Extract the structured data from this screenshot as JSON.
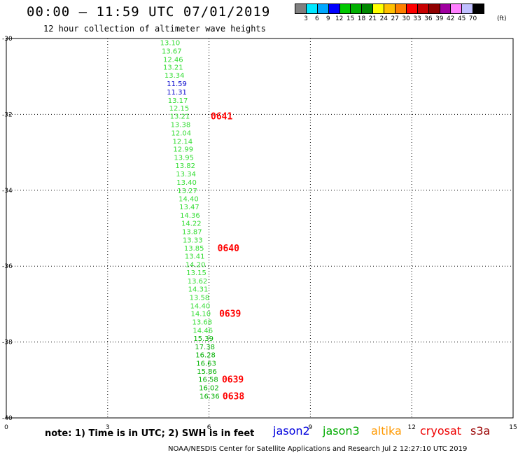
{
  "header": {
    "title": "00:00 — 11:59 UTC 07/01/2019",
    "subtitle": "12 hour collection of altimeter wave heights"
  },
  "color_scale": {
    "unit": "(ft)",
    "colors": [
      "#808080",
      "#00e8ff",
      "#00a8ff",
      "#0000ff",
      "#00c800",
      "#00b000",
      "#008800",
      "#ffff00",
      "#ffc000",
      "#ff8000",
      "#ff0000",
      "#c80000",
      "#900000",
      "#a000a0",
      "#ff80ff",
      "#c0c0ff",
      "#000000"
    ],
    "labels": [
      "3",
      "6",
      "9",
      "12",
      "15",
      "18",
      "21",
      "24",
      "27",
      "30",
      "33",
      "36",
      "39",
      "42",
      "45",
      "70"
    ]
  },
  "map": {
    "x_ticks": [
      "0",
      "3",
      "6",
      "9",
      "12",
      "15"
    ],
    "y_ticks": [
      "-30",
      "-32",
      "-34",
      "-36",
      "-38",
      "-40"
    ],
    "x_range": [
      0,
      15
    ],
    "y_range": [
      -30,
      -40
    ]
  },
  "wave_heights": [
    {
      "v": "13.10",
      "lon": 4.55,
      "lat": -30.1,
      "c": "#33dd33"
    },
    {
      "v": "13.67",
      "lon": 4.6,
      "lat": -30.32,
      "c": "#33dd33"
    },
    {
      "v": "12.46",
      "lon": 4.64,
      "lat": -30.54,
      "c": "#33dd33"
    },
    {
      "v": "13.21",
      "lon": 4.64,
      "lat": -30.75,
      "c": "#33dd33"
    },
    {
      "v": "13.34",
      "lon": 4.68,
      "lat": -30.96,
      "c": "#33dd33"
    },
    {
      "v": "11.59",
      "lon": 4.75,
      "lat": -31.18,
      "c": "#0000cc"
    },
    {
      "v": "11.31",
      "lon": 4.75,
      "lat": -31.4,
      "c": "#0000cc"
    },
    {
      "v": "13.17",
      "lon": 4.78,
      "lat": -31.62,
      "c": "#33dd33"
    },
    {
      "v": "12.15",
      "lon": 4.82,
      "lat": -31.83,
      "c": "#33dd33"
    },
    {
      "v": "13.21",
      "lon": 4.84,
      "lat": -32.04,
      "c": "#33dd33"
    },
    {
      "v": "13.38",
      "lon": 4.86,
      "lat": -32.26,
      "c": "#33dd33"
    },
    {
      "v": "12.04",
      "lon": 4.88,
      "lat": -32.48,
      "c": "#33dd33"
    },
    {
      "v": "12.14",
      "lon": 4.92,
      "lat": -32.7,
      "c": "#33dd33"
    },
    {
      "v": "12.99",
      "lon": 4.94,
      "lat": -32.91,
      "c": "#33dd33"
    },
    {
      "v": "13.95",
      "lon": 4.96,
      "lat": -33.13,
      "c": "#33dd33"
    },
    {
      "v": "13.82",
      "lon": 5.0,
      "lat": -33.34,
      "c": "#33dd33"
    },
    {
      "v": "13.34",
      "lon": 5.02,
      "lat": -33.56,
      "c": "#33dd33"
    },
    {
      "v": "13.40",
      "lon": 5.04,
      "lat": -33.78,
      "c": "#33dd33"
    },
    {
      "v": "13.27",
      "lon": 5.06,
      "lat": -34.0,
      "c": "#33dd33"
    },
    {
      "v": "14.40",
      "lon": 5.1,
      "lat": -34.22,
      "c": "#33dd33"
    },
    {
      "v": "13.47",
      "lon": 5.12,
      "lat": -34.43,
      "c": "#33dd33"
    },
    {
      "v": "14.36",
      "lon": 5.14,
      "lat": -34.65,
      "c": "#33dd33"
    },
    {
      "v": "14.22",
      "lon": 5.18,
      "lat": -34.86,
      "c": "#33dd33"
    },
    {
      "v": "13.87",
      "lon": 5.2,
      "lat": -35.08,
      "c": "#33dd33"
    },
    {
      "v": "13.33",
      "lon": 5.22,
      "lat": -35.3,
      "c": "#33dd33"
    },
    {
      "v": "13.85",
      "lon": 5.26,
      "lat": -35.52,
      "c": "#33dd33"
    },
    {
      "v": "13.41",
      "lon": 5.28,
      "lat": -35.73,
      "c": "#33dd33"
    },
    {
      "v": "14.20",
      "lon": 5.3,
      "lat": -35.95,
      "c": "#33dd33"
    },
    {
      "v": "13.15",
      "lon": 5.33,
      "lat": -36.16,
      "c": "#33dd33"
    },
    {
      "v": "13.62",
      "lon": 5.36,
      "lat": -36.38,
      "c": "#33dd33"
    },
    {
      "v": "14.31",
      "lon": 5.38,
      "lat": -36.6,
      "c": "#33dd33"
    },
    {
      "v": "13.58",
      "lon": 5.42,
      "lat": -36.82,
      "c": "#33dd33"
    },
    {
      "v": "14.40",
      "lon": 5.44,
      "lat": -37.04,
      "c": "#33dd33"
    },
    {
      "v": "14.10",
      "lon": 5.46,
      "lat": -37.24,
      "c": "#33dd33"
    },
    {
      "v": "13.68",
      "lon": 5.5,
      "lat": -37.46,
      "c": "#33dd33"
    },
    {
      "v": "14.46",
      "lon": 5.52,
      "lat": -37.68,
      "c": "#33dd33"
    },
    {
      "v": "15.39",
      "lon": 5.54,
      "lat": -37.9,
      "c": "#00b000"
    },
    {
      "v": "17.38",
      "lon": 5.58,
      "lat": -38.12,
      "c": "#00b000"
    },
    {
      "v": "16.28",
      "lon": 5.6,
      "lat": -38.33,
      "c": "#00b000"
    },
    {
      "v": "16.63",
      "lon": 5.62,
      "lat": -38.55,
      "c": "#00b000"
    },
    {
      "v": "15.86",
      "lon": 5.64,
      "lat": -38.76,
      "c": "#00b000"
    },
    {
      "v": "16.58",
      "lon": 5.68,
      "lat": -38.98,
      "c": "#00b000"
    },
    {
      "v": "16.02",
      "lon": 5.7,
      "lat": -39.2,
      "c": "#00b000"
    },
    {
      "v": "16.36",
      "lon": 5.72,
      "lat": -39.42,
      "c": "#00b000"
    }
  ],
  "pass_times": [
    {
      "t": "0641",
      "lon": 6.05,
      "lat": -32.04
    },
    {
      "t": "0640",
      "lon": 6.25,
      "lat": -35.52
    },
    {
      "t": "0639",
      "lon": 6.3,
      "lat": -37.24
    },
    {
      "t": "0639",
      "lon": 6.38,
      "lat": -38.98
    },
    {
      "t": "0638",
      "lon": 6.4,
      "lat": -39.42
    }
  ],
  "note": "note:  1) Time is in UTC; 2) SWH is in feet",
  "legend": [
    {
      "name": "jason2",
      "color": "#0000dd"
    },
    {
      "name": "jason3",
      "color": "#00aa00"
    },
    {
      "name": "altika",
      "color": "#ff9900"
    },
    {
      "name": "cryosat",
      "color": "#ee0000"
    },
    {
      "name": "s3a",
      "color": "#990000"
    }
  ],
  "footer": "NOAA/NESDIS Center for Satellite Applications and Research    Jul  2 12:27:10 UTC 2019"
}
